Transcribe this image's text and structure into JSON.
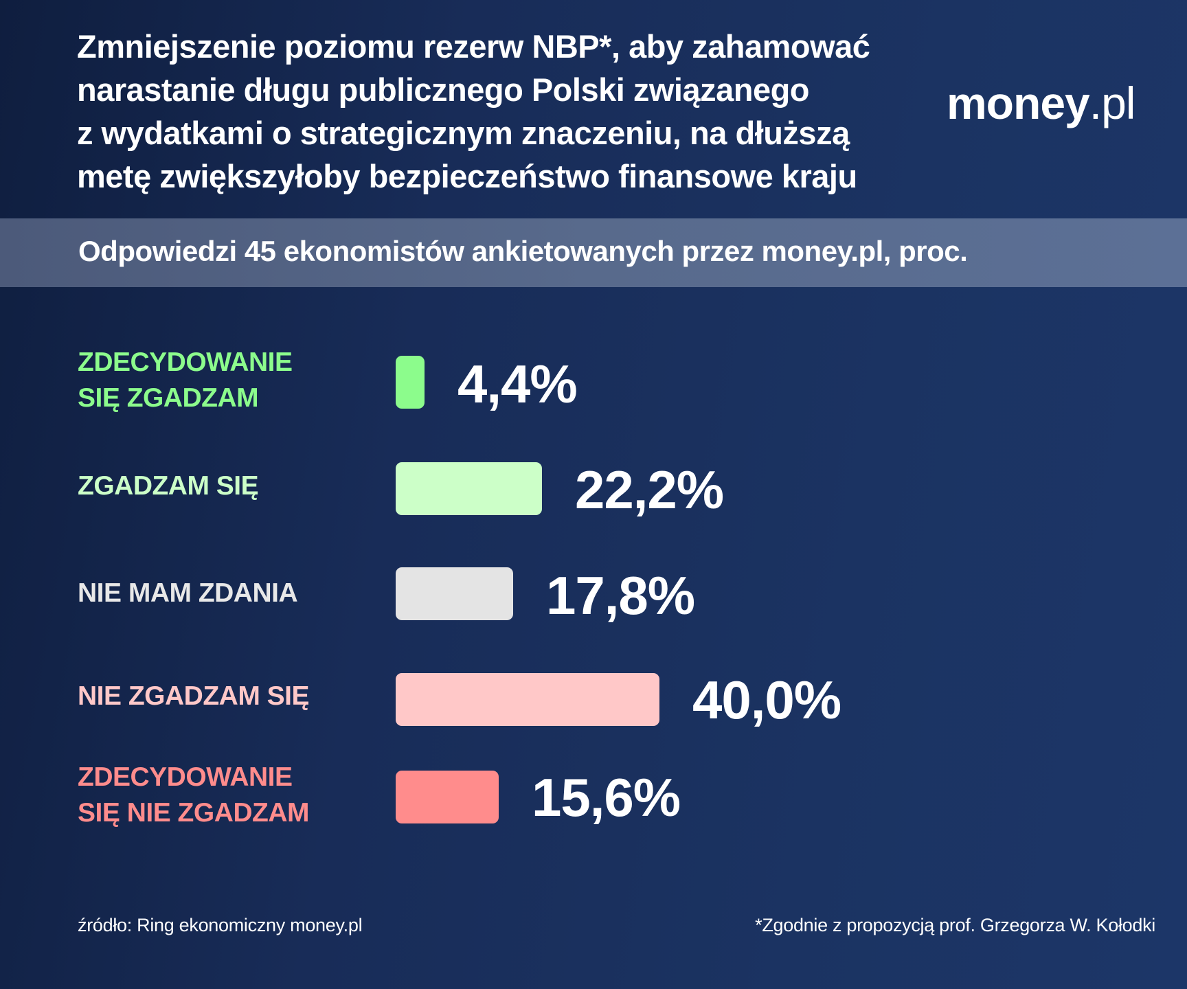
{
  "header": {
    "title_lines": [
      "Zmniejszenie poziomu rezerw NBP*, aby zahamować",
      "narastanie długu publicznego Polski związanego",
      "z wydatkami o strategicznym znaczeniu, na dłuższą",
      "metę zwiększyłoby bezpieczeństwo finansowe kraju"
    ],
    "logo_main": "money",
    "logo_tld": ".pl",
    "subtitle": "Odpowiedzi 45 ekonomistów ankietowanych przez money.pl, proc."
  },
  "colors": {
    "background": "#182c58",
    "subtitle_band": "#586a8c",
    "strongly_agree": "#8cfc8c",
    "agree": "#ccffc8",
    "no_opinion": "#e4e4e4",
    "disagree": "#ffc8c8",
    "strongly_disagree": "#ff8c8c"
  },
  "rows": [
    {
      "label_lines": [
        "ZDECYDOWANIE",
        "SIĘ ZGADZAM"
      ],
      "value": 4.4,
      "value_label": "4,4%",
      "color": "#8cfc8c"
    },
    {
      "label_lines": [
        "ZGADZAM SIĘ"
      ],
      "value": 22.2,
      "value_label": "22,2%",
      "color": "#ccffc8"
    },
    {
      "label_lines": [
        "NIE MAM ZDANIA"
      ],
      "value": 17.8,
      "value_label": "17,8%",
      "color": "#e4e4e4"
    },
    {
      "label_lines": [
        "NIE ZGADZAM SIĘ"
      ],
      "value": 40.0,
      "value_label": "40,0%",
      "color": "#ffc8c8"
    },
    {
      "label_lines": [
        "ZDECYDOWANIE",
        "SIĘ NIE ZGADZAM"
      ],
      "value": 15.6,
      "value_label": "15,6%",
      "color": "#ff8c8c"
    }
  ],
  "footer": {
    "source": "źródło: Ring ekonomiczny money.pl",
    "note": "*Zgodnie z propozycją prof. Grzegorza W. Kołodki"
  },
  "chart_data": {
    "type": "bar",
    "orientation": "horizontal",
    "title": "Zmniejszenie poziomu rezerw NBP*, aby zahamować narastanie długu publicznego Polski związanego z wydatkami o strategicznym znaczeniu, na dłuższą metę zwiększyłoby bezpieczeństwo finansowe kraju",
    "subtitle": "Odpowiedzi 45 ekonomistów ankietowanych przez money.pl, proc.",
    "categories": [
      "ZDECYDOWANIE SIĘ ZGADZAM",
      "ZGADZAM SIĘ",
      "NIE MAM ZDANIA",
      "NIE ZGADZAM SIĘ",
      "ZDECYDOWANIE SIĘ NIE ZGADZAM"
    ],
    "values": [
      4.4,
      22.2,
      17.8,
      40.0,
      15.6
    ],
    "data_labels": [
      "4,4%",
      "22,2%",
      "17,8%",
      "40,0%",
      "15,6%"
    ],
    "colors": [
      "#8cfc8c",
      "#ccffc8",
      "#e4e4e4",
      "#ffc8c8",
      "#ff8c8c"
    ],
    "xlabel": "",
    "ylabel": "",
    "unit": "%",
    "grid": false,
    "legend": "none",
    "annotations": [
      "źródło: Ring ekonomiczny money.pl",
      "*Zgodnie z propozycją prof. Grzegorza W. Kołodki"
    ]
  }
}
